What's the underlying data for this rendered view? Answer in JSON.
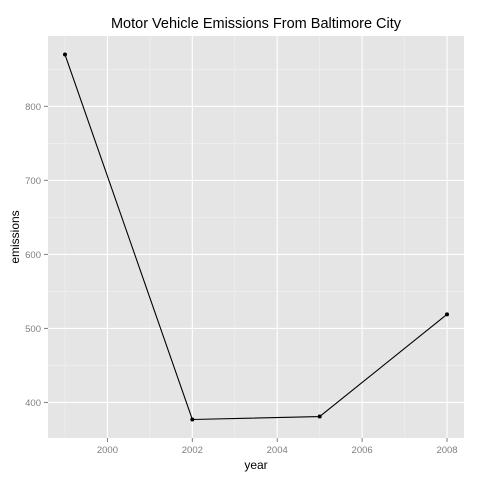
{
  "chart_data": {
    "type": "line",
    "title": "Motor Vehicle Emissions From Baltimore City",
    "xlabel": "year",
    "ylabel": "emissions",
    "x": [
      1999,
      2002,
      2005,
      2008
    ],
    "series": [
      {
        "values": [
          870,
          377,
          381,
          519
        ]
      }
    ],
    "xlim": [
      1998.6,
      2008.4
    ],
    "ylim": [
      352,
      895
    ],
    "xticks": [
      2000,
      2002,
      2004,
      2006,
      2008
    ],
    "xtick_labels": [
      "2000",
      "2002",
      "2004",
      "2006",
      "2008"
    ],
    "yticks": [
      400,
      500,
      600,
      700,
      800
    ],
    "ytick_labels": [
      "400",
      "500",
      "600",
      "700",
      "800"
    ],
    "grid": true,
    "legend": "none",
    "colors": {
      "panel_background": "#e5e5e5",
      "grid_major": "#ffffff",
      "grid_minor": "#f2f2f2",
      "line": "#000000",
      "point": "#000000",
      "tick_mark": "#7f7f7f"
    }
  }
}
